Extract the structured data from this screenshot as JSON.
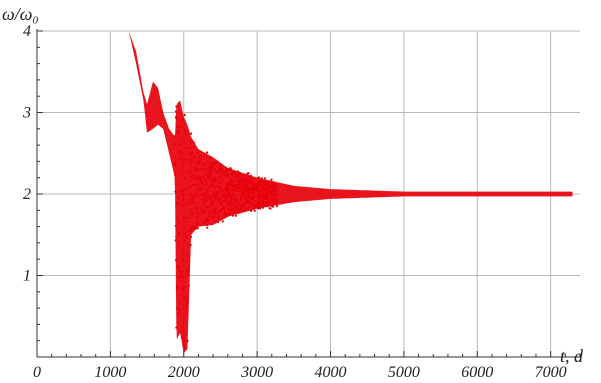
{
  "chart_data": {
    "type": "scatter",
    "title": "",
    "xlabel": "t, d",
    "ylabel": "ω/ω₀",
    "xlim": [
      0,
      7400
    ],
    "ylim": [
      0,
      4
    ],
    "xticks": [
      0,
      1000,
      2000,
      3000,
      4000,
      5000,
      6000,
      7000
    ],
    "yticks": [
      1,
      2,
      3,
      4
    ],
    "x_tick_labels": [
      "0",
      "1000",
      "2000",
      "3000",
      "4000",
      "5000",
      "6000",
      "7000"
    ],
    "y_tick_labels": [
      "1",
      "2",
      "3",
      "4"
    ],
    "grid": true,
    "color": "#e8000b",
    "envelope": [
      {
        "x": 1250,
        "lo": 4.0,
        "hi": 4.0
      },
      {
        "x": 1350,
        "lo": 3.6,
        "hi": 3.75
      },
      {
        "x": 1450,
        "lo": 3.15,
        "hi": 3.25
      },
      {
        "x": 1500,
        "lo": 2.75,
        "hi": 3.1
      },
      {
        "x": 1580,
        "lo": 2.8,
        "hi": 3.38
      },
      {
        "x": 1650,
        "lo": 2.85,
        "hi": 3.3
      },
      {
        "x": 1720,
        "lo": 2.8,
        "hi": 3.0
      },
      {
        "x": 1800,
        "lo": 2.5,
        "hi": 2.8
      },
      {
        "x": 1880,
        "lo": 2.2,
        "hi": 2.7
      },
      {
        "x": 1900,
        "lo": 0.2,
        "hi": 3.1
      },
      {
        "x": 1950,
        "lo": 0.3,
        "hi": 3.15
      },
      {
        "x": 2000,
        "lo": 0.05,
        "hi": 2.95
      },
      {
        "x": 2050,
        "lo": 0.1,
        "hi": 2.85
      },
      {
        "x": 2100,
        "lo": 1.5,
        "hi": 2.7
      },
      {
        "x": 2200,
        "lo": 1.6,
        "hi": 2.55
      },
      {
        "x": 2400,
        "lo": 1.62,
        "hi": 2.45
      },
      {
        "x": 2600,
        "lo": 1.72,
        "hi": 2.32
      },
      {
        "x": 3000,
        "lo": 1.82,
        "hi": 2.2
      },
      {
        "x": 3500,
        "lo": 1.9,
        "hi": 2.1
      },
      {
        "x": 4000,
        "lo": 1.94,
        "hi": 2.06
      },
      {
        "x": 5000,
        "lo": 1.97,
        "hi": 2.03
      },
      {
        "x": 6000,
        "lo": 1.97,
        "hi": 2.03
      },
      {
        "x": 7300,
        "lo": 1.97,
        "hi": 2.03
      }
    ]
  }
}
